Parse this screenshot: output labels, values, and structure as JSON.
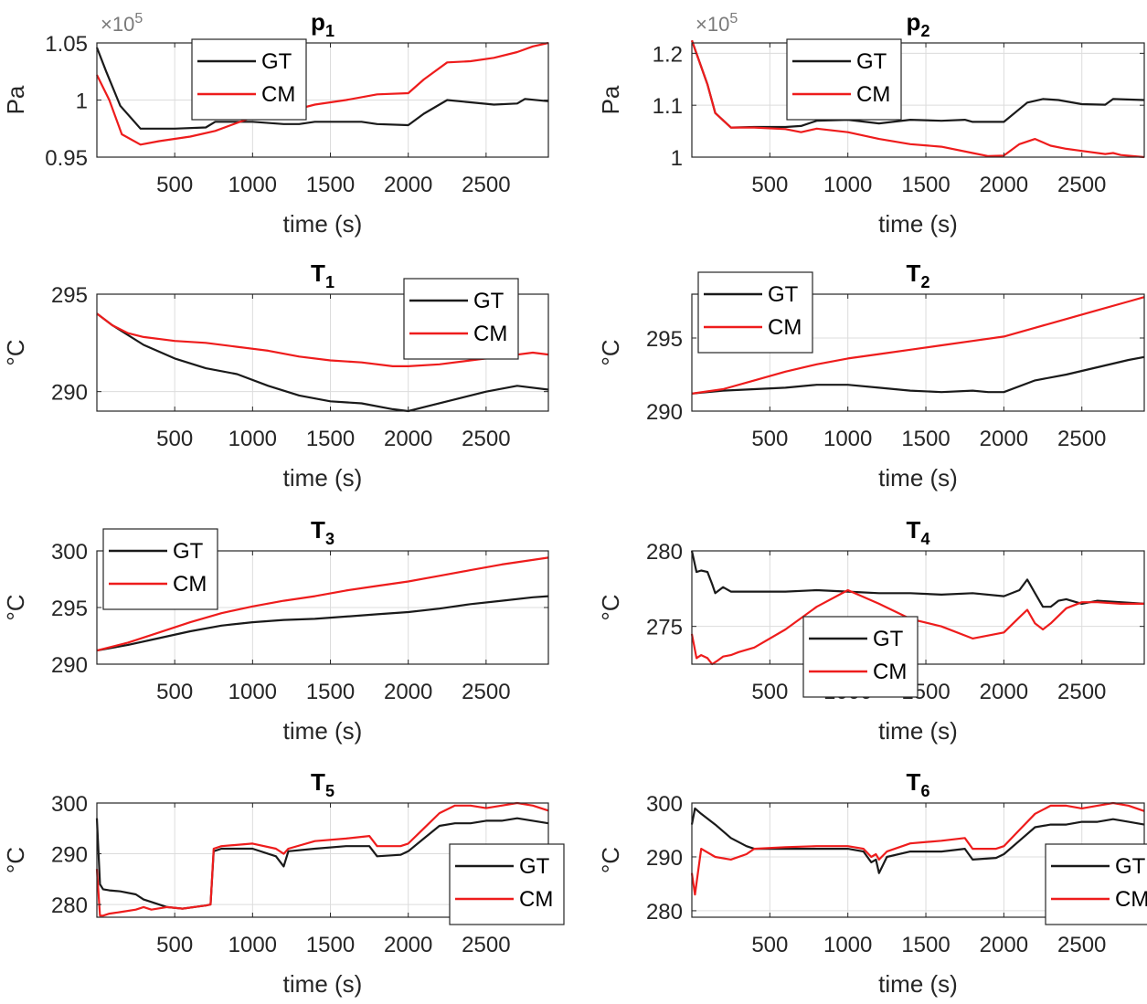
{
  "colors": {
    "GT": "#1a1a1a",
    "CM": "#ee1c1c",
    "grid": "#dcdcdc",
    "axis": "#262626"
  },
  "chart_data": [
    {
      "type": "line",
      "title_base": "p",
      "title_sub": "1",
      "xlabel": "time (s)",
      "ylabel": "Pa",
      "exponent_label": "×10",
      "exponent_power": "5",
      "xlim": [
        0,
        2900
      ],
      "ylim": [
        0.95,
        1.05
      ],
      "xticks": [
        500,
        1000,
        1500,
        2000,
        2500
      ],
      "yticks": [
        0.95,
        1,
        1.05
      ],
      "ytick_labels": [
        "0.95",
        "1",
        "1.05"
      ],
      "grid": true,
      "legend_position": "top-center",
      "series": [
        {
          "name": "GT",
          "x": [
            0,
            60,
            150,
            280,
            400,
            500,
            700,
            760,
            1000,
            1200,
            1300,
            1400,
            1500,
            1700,
            1800,
            2000,
            2100,
            2250,
            2400,
            2550,
            2700,
            2750,
            2900
          ],
          "y": [
            1.046,
            1.025,
            0.995,
            0.975,
            0.975,
            0.975,
            0.976,
            0.981,
            0.981,
            0.979,
            0.979,
            0.981,
            0.981,
            0.981,
            0.979,
            0.978,
            0.988,
            1.0,
            0.998,
            0.996,
            0.997,
            1.001,
            0.999
          ]
        },
        {
          "name": "CM",
          "x": [
            0,
            80,
            160,
            280,
            400,
            600,
            760,
            1000,
            1200,
            1400,
            1600,
            1800,
            2000,
            2100,
            2250,
            2400,
            2550,
            2700,
            2800,
            2900
          ],
          "y": [
            1.022,
            1.0,
            0.97,
            0.961,
            0.964,
            0.968,
            0.973,
            0.985,
            0.989,
            0.996,
            1.0,
            1.005,
            1.006,
            1.018,
            1.033,
            1.034,
            1.037,
            1.042,
            1.047,
            1.05
          ]
        }
      ]
    },
    {
      "type": "line",
      "title_base": "p",
      "title_sub": "2",
      "xlabel": "time (s)",
      "ylabel": "Pa",
      "exponent_label": "×10",
      "exponent_power": "5",
      "xlim": [
        0,
        2900
      ],
      "ylim": [
        1.0,
        1.22
      ],
      "xticks": [
        500,
        1000,
        1500,
        2000,
        2500
      ],
      "yticks": [
        1.0,
        1.1,
        1.2
      ],
      "ytick_labels": [
        "1",
        "1.1",
        "1.2"
      ],
      "grid": true,
      "legend_position": "top-center",
      "series": [
        {
          "name": "GT",
          "x": [
            0,
            100,
            150,
            250,
            400,
            600,
            700,
            800,
            1000,
            1200,
            1400,
            1600,
            1750,
            1800,
            2000,
            2150,
            2250,
            2350,
            2500,
            2650,
            2700,
            2900
          ],
          "y": [
            1.225,
            1.14,
            1.085,
            1.057,
            1.058,
            1.058,
            1.06,
            1.07,
            1.072,
            1.065,
            1.072,
            1.07,
            1.072,
            1.068,
            1.068,
            1.105,
            1.112,
            1.11,
            1.102,
            1.101,
            1.112,
            1.11
          ]
        },
        {
          "name": "CM",
          "x": [
            0,
            100,
            150,
            250,
            400,
            600,
            700,
            800,
            1000,
            1200,
            1400,
            1600,
            1800,
            1900,
            2000,
            2100,
            2200,
            2300,
            2400,
            2500,
            2650,
            2700,
            2750,
            2900
          ],
          "y": [
            1.225,
            1.14,
            1.085,
            1.057,
            1.057,
            1.054,
            1.048,
            1.055,
            1.048,
            1.035,
            1.025,
            1.02,
            1.008,
            1.002,
            1.003,
            1.025,
            1.035,
            1.022,
            1.016,
            1.012,
            1.006,
            1.008,
            1.004,
            1.0
          ]
        }
      ]
    },
    {
      "type": "line",
      "title_base": "T",
      "title_sub": "1",
      "xlabel": "time (s)",
      "ylabel": "°C",
      "xlim": [
        0,
        2900
      ],
      "ylim": [
        289,
        295
      ],
      "xticks": [
        500,
        1000,
        1500,
        2000,
        2500
      ],
      "yticks": [
        290,
        295
      ],
      "ytick_labels": [
        "290",
        "295"
      ],
      "grid": true,
      "legend_position": "top-right",
      "series": [
        {
          "name": "GT",
          "x": [
            0,
            100,
            200,
            300,
            500,
            700,
            900,
            1100,
            1300,
            1500,
            1700,
            1900,
            2000,
            2100,
            2300,
            2500,
            2700,
            2900
          ],
          "y": [
            294.0,
            293.4,
            292.9,
            292.4,
            291.7,
            291.2,
            290.9,
            290.3,
            289.8,
            289.5,
            289.4,
            289.1,
            289.0,
            289.2,
            289.6,
            290.0,
            290.3,
            290.1
          ]
        },
        {
          "name": "CM",
          "x": [
            0,
            100,
            200,
            300,
            500,
            700,
            900,
            1100,
            1300,
            1500,
            1700,
            1900,
            2000,
            2200,
            2400,
            2600,
            2800,
            2900
          ],
          "y": [
            294.0,
            293.4,
            293.0,
            292.8,
            292.6,
            292.5,
            292.3,
            292.1,
            291.8,
            291.6,
            291.5,
            291.3,
            291.3,
            291.4,
            291.6,
            291.8,
            292.0,
            291.9
          ]
        }
      ]
    },
    {
      "type": "line",
      "title_base": "T",
      "title_sub": "2",
      "xlabel": "time (s)",
      "ylabel": "°C",
      "xlim": [
        0,
        2900
      ],
      "ylim": [
        290,
        298
      ],
      "xticks": [
        500,
        1000,
        1500,
        2000,
        2500
      ],
      "yticks": [
        290,
        295
      ],
      "ytick_labels": [
        "290",
        "295"
      ],
      "grid": true,
      "legend_position": "top-left",
      "series": [
        {
          "name": "GT",
          "x": [
            0,
            200,
            400,
            600,
            800,
            1000,
            1200,
            1400,
            1600,
            1800,
            1900,
            2000,
            2200,
            2400,
            2600,
            2800,
            2900
          ],
          "y": [
            291.2,
            291.4,
            291.5,
            291.6,
            291.8,
            291.8,
            291.6,
            291.4,
            291.3,
            291.4,
            291.3,
            291.3,
            292.1,
            292.5,
            293.0,
            293.5,
            293.7
          ]
        },
        {
          "name": "CM",
          "x": [
            0,
            200,
            400,
            600,
            800,
            1000,
            1200,
            1400,
            1600,
            1800,
            2000,
            2200,
            2400,
            2600,
            2800,
            2900
          ],
          "y": [
            291.2,
            291.5,
            292.1,
            292.7,
            293.2,
            293.6,
            293.9,
            294.2,
            294.5,
            294.8,
            295.1,
            295.7,
            296.3,
            296.9,
            297.5,
            297.8
          ]
        }
      ]
    },
    {
      "type": "line",
      "title_base": "T",
      "title_sub": "3",
      "xlabel": "time (s)",
      "ylabel": "°C",
      "xlim": [
        0,
        2900
      ],
      "ylim": [
        290,
        300
      ],
      "xticks": [
        500,
        1000,
        1500,
        2000,
        2500
      ],
      "yticks": [
        290,
        295,
        300
      ],
      "ytick_labels": [
        "290",
        "295",
        "300"
      ],
      "grid": true,
      "legend_position": "top-left",
      "series": [
        {
          "name": "GT",
          "x": [
            0,
            200,
            400,
            600,
            800,
            1000,
            1200,
            1400,
            1600,
            1800,
            2000,
            2200,
            2400,
            2600,
            2800,
            2900
          ],
          "y": [
            291.2,
            291.7,
            292.3,
            292.9,
            293.4,
            293.7,
            293.9,
            294.0,
            294.2,
            294.4,
            294.6,
            294.9,
            295.3,
            295.6,
            295.9,
            296.0
          ]
        },
        {
          "name": "CM",
          "x": [
            0,
            200,
            400,
            600,
            800,
            1000,
            1200,
            1400,
            1600,
            1800,
            2000,
            2200,
            2400,
            2600,
            2800,
            2900
          ],
          "y": [
            291.2,
            291.9,
            292.8,
            293.7,
            294.5,
            295.1,
            295.6,
            296.0,
            296.5,
            296.9,
            297.3,
            297.8,
            298.3,
            298.8,
            299.2,
            299.4
          ]
        }
      ]
    },
    {
      "type": "line",
      "title_base": "T",
      "title_sub": "4",
      "xlabel": "time (s)",
      "ylabel": "°C",
      "xlim": [
        0,
        2900
      ],
      "ylim": [
        272.5,
        280
      ],
      "xticks": [
        500,
        1000,
        1500,
        2000,
        2500
      ],
      "yticks": [
        275,
        280
      ],
      "ytick_labels": [
        "275",
        "280"
      ],
      "grid": true,
      "legend_position": "bottom-center",
      "series": [
        {
          "name": "GT",
          "x": [
            0,
            30,
            60,
            100,
            130,
            150,
            200,
            250,
            400,
            600,
            800,
            1000,
            1200,
            1400,
            1600,
            1800,
            2000,
            2100,
            2150,
            2200,
            2250,
            2300,
            2350,
            2400,
            2500,
            2600,
            2750,
            2900
          ],
          "y": [
            280.0,
            278.6,
            278.7,
            278.6,
            277.8,
            277.2,
            277.6,
            277.3,
            277.3,
            277.3,
            277.4,
            277.3,
            277.2,
            277.2,
            277.1,
            277.2,
            277.0,
            277.4,
            278.1,
            277.2,
            276.3,
            276.3,
            276.7,
            276.8,
            276.5,
            276.7,
            276.6,
            276.5
          ]
        },
        {
          "name": "CM",
          "x": [
            0,
            30,
            60,
            100,
            130,
            160,
            200,
            250,
            300,
            400,
            600,
            800,
            1000,
            1200,
            1400,
            1600,
            1800,
            2000,
            2100,
            2150,
            2200,
            2250,
            2300,
            2400,
            2500,
            2600,
            2750,
            2900
          ],
          "y": [
            274.5,
            272.9,
            273.1,
            272.9,
            272.5,
            272.7,
            273.0,
            273.1,
            273.3,
            273.6,
            274.8,
            276.3,
            277.4,
            276.5,
            275.5,
            275.0,
            274.2,
            274.6,
            275.6,
            276.1,
            275.2,
            274.8,
            275.2,
            276.2,
            276.6,
            276.6,
            276.5,
            276.5
          ]
        }
      ]
    },
    {
      "type": "line",
      "title_base": "T",
      "title_sub": "5",
      "xlabel": "time (s)",
      "ylabel": "°C",
      "xlim": [
        0,
        2900
      ],
      "ylim": [
        277.5,
        300
      ],
      "xticks": [
        500,
        1000,
        1500,
        2000,
        2500
      ],
      "yticks": [
        280,
        290,
        300
      ],
      "ytick_labels": [
        "280",
        "290",
        "300"
      ],
      "grid": true,
      "legend_position": "bottom-right",
      "series": [
        {
          "name": "GT",
          "x": [
            0,
            20,
            40,
            80,
            150,
            250,
            300,
            350,
            450,
            550,
            650,
            700,
            730,
            750,
            800,
            1000,
            1150,
            1200,
            1230,
            1400,
            1600,
            1750,
            1800,
            1950,
            2000,
            2100,
            2200,
            2300,
            2400,
            2500,
            2600,
            2700,
            2800,
            2900
          ],
          "y": [
            297.0,
            284.0,
            283.0,
            282.8,
            282.6,
            282.0,
            281.0,
            280.5,
            279.5,
            279.2,
            279.6,
            279.8,
            280.0,
            290.5,
            291.0,
            291.0,
            289.5,
            287.5,
            290.5,
            291.0,
            291.5,
            291.5,
            289.5,
            289.8,
            290.5,
            293.0,
            295.5,
            296.0,
            296.0,
            296.5,
            296.5,
            297.0,
            296.5,
            296.0
          ]
        },
        {
          "name": "CM",
          "x": [
            0,
            20,
            40,
            80,
            150,
            250,
            300,
            350,
            450,
            550,
            650,
            700,
            730,
            750,
            800,
            1000,
            1150,
            1200,
            1230,
            1400,
            1600,
            1750,
            1800,
            1950,
            2000,
            2100,
            2200,
            2300,
            2400,
            2500,
            2600,
            2700,
            2800,
            2900
          ],
          "y": [
            287.0,
            277.8,
            277.8,
            278.2,
            278.5,
            279.0,
            279.5,
            279.0,
            279.5,
            279.2,
            279.6,
            279.8,
            280.0,
            291.0,
            291.5,
            292.0,
            291.0,
            290.0,
            291.0,
            292.5,
            293.0,
            293.5,
            291.5,
            291.5,
            292.0,
            295.0,
            298.0,
            299.5,
            299.5,
            299.0,
            299.5,
            300.0,
            299.5,
            298.5
          ]
        }
      ]
    },
    {
      "type": "line",
      "title_base": "T",
      "title_sub": "6",
      "xlabel": "time (s)",
      "ylabel": "°C",
      "xlim": [
        0,
        2900
      ],
      "ylim": [
        278.8,
        300
      ],
      "xticks": [
        500,
        1000,
        1500,
        2000,
        2500
      ],
      "yticks": [
        280,
        290,
        300
      ],
      "ytick_labels": [
        "280",
        "290",
        "300"
      ],
      "grid": true,
      "legend_position": "bottom-right",
      "series": [
        {
          "name": "GT",
          "x": [
            0,
            20,
            60,
            150,
            250,
            350,
            400,
            600,
            800,
            1000,
            1100,
            1150,
            1180,
            1200,
            1250,
            1400,
            1600,
            1750,
            1800,
            1950,
            2000,
            2100,
            2200,
            2300,
            2400,
            2500,
            2600,
            2700,
            2800,
            2900
          ],
          "y": [
            296.0,
            299.0,
            298.0,
            296.0,
            293.5,
            292.0,
            291.5,
            291.5,
            291.5,
            291.5,
            291.0,
            289.0,
            289.5,
            287.0,
            290.0,
            291.0,
            291.0,
            291.5,
            289.5,
            289.8,
            290.5,
            293.0,
            295.5,
            296.0,
            296.0,
            296.5,
            296.5,
            297.0,
            296.5,
            296.0
          ]
        },
        {
          "name": "CM",
          "x": [
            0,
            20,
            60,
            150,
            250,
            350,
            400,
            600,
            800,
            1000,
            1100,
            1150,
            1180,
            1200,
            1250,
            1400,
            1600,
            1750,
            1800,
            1950,
            2000,
            2100,
            2200,
            2300,
            2400,
            2500,
            2600,
            2700,
            2800,
            2900
          ],
          "y": [
            287.0,
            283.0,
            291.5,
            290.0,
            289.5,
            290.5,
            291.5,
            291.8,
            292.0,
            292.0,
            291.5,
            290.0,
            290.5,
            289.5,
            291.0,
            292.5,
            293.0,
            293.5,
            291.5,
            291.5,
            292.0,
            295.0,
            298.0,
            299.5,
            299.5,
            299.0,
            299.5,
            300.0,
            299.5,
            298.5
          ]
        }
      ]
    }
  ]
}
